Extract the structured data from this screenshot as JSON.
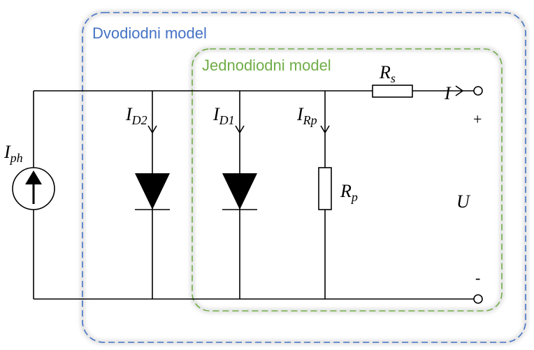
{
  "boxes": {
    "outer": "Dvodiodni model",
    "inner": "Jednodiodni model"
  },
  "labels": {
    "rs": {
      "main": "R",
      "sub": "s"
    },
    "i": "I",
    "plus": "+",
    "minus": "-",
    "iph": {
      "main": "I",
      "sub": "ph"
    },
    "id2": {
      "main": "I",
      "sub": "D2"
    },
    "id1": {
      "main": "I",
      "sub": "D1"
    },
    "irp": {
      "main": "I",
      "sub": "Rp"
    },
    "rp": {
      "main": "R",
      "sub": "p"
    },
    "u": "U"
  }
}
